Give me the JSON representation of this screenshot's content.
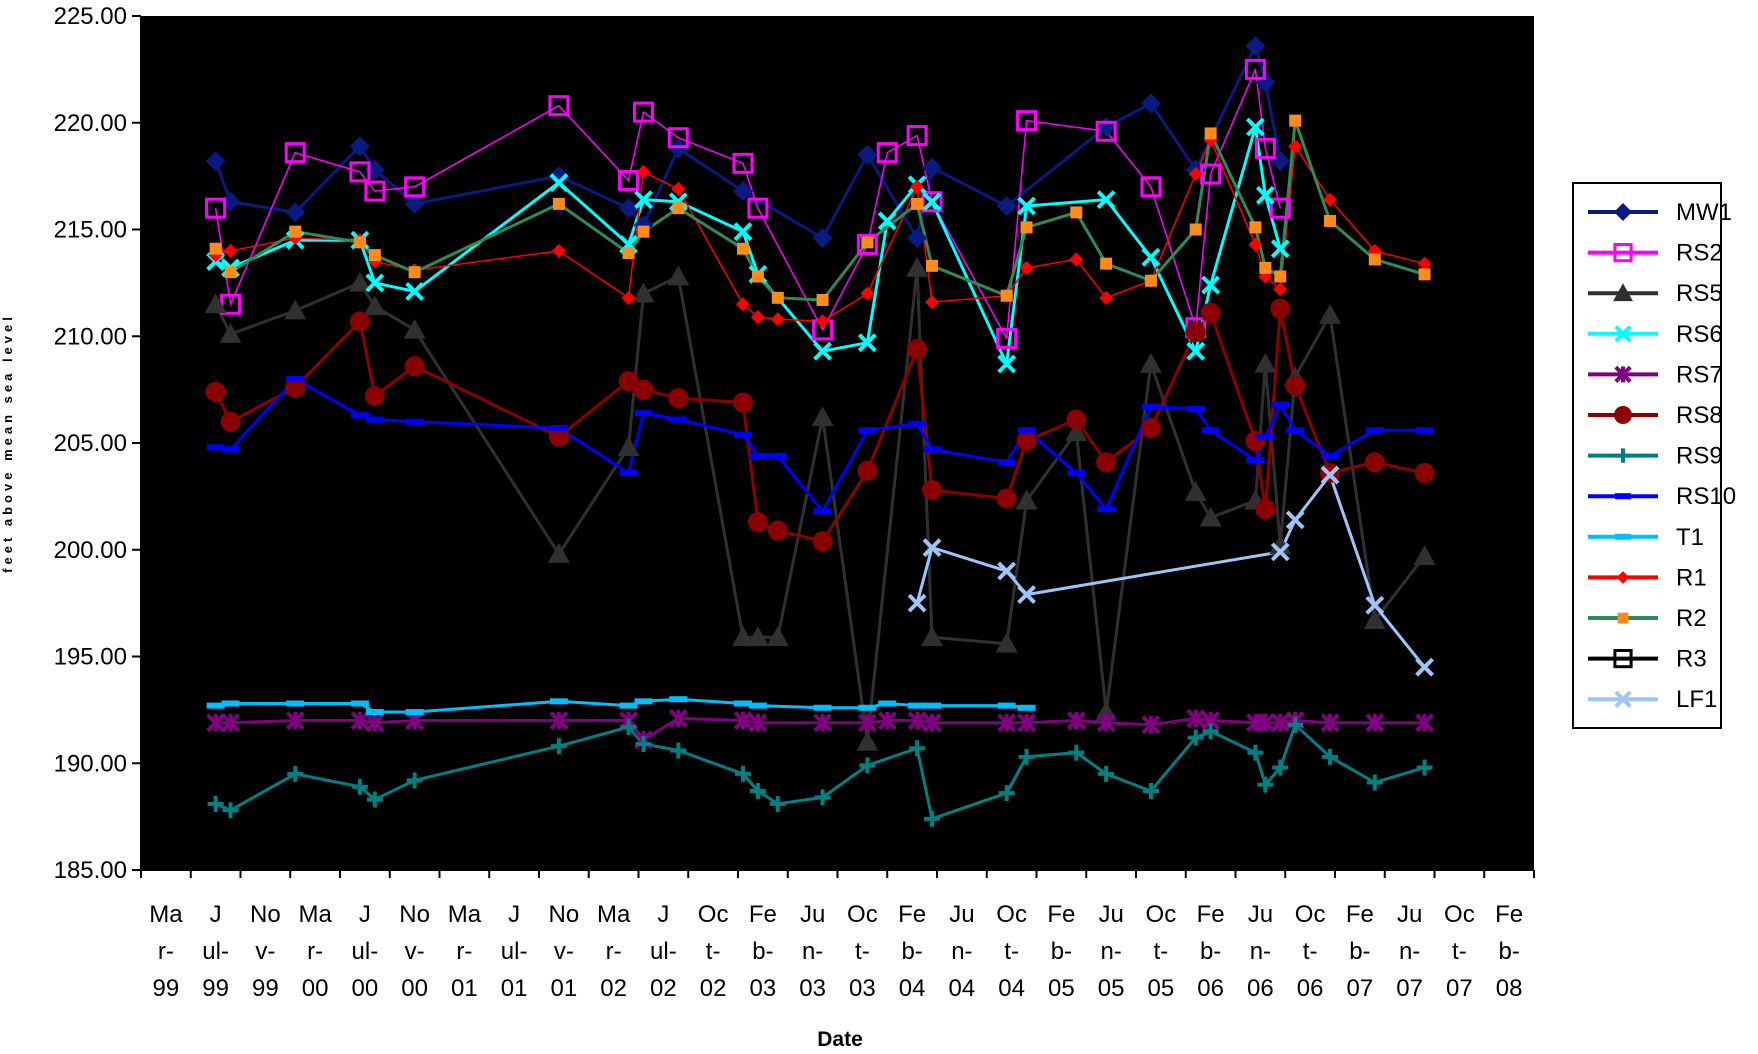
{
  "chart_data": {
    "type": "line",
    "title": "",
    "xlabel": "Date",
    "ylabel": "feet above mean sea level",
    "ylim": [
      185,
      225
    ],
    "yticks": [
      "185.00",
      "190.00",
      "195.00",
      "200.00",
      "205.00",
      "210.00",
      "215.00",
      "220.00",
      "225.00"
    ],
    "xticks": [
      [
        "Ma",
        "r-",
        "99"
      ],
      [
        "J",
        "ul-",
        "99"
      ],
      [
        "No",
        "v-",
        "99"
      ],
      [
        "Ma",
        "r-",
        "00"
      ],
      [
        "J",
        "ul-",
        "00"
      ],
      [
        "No",
        "v-",
        "00"
      ],
      [
        "Ma",
        "r-",
        "01"
      ],
      [
        "J",
        "ul-",
        "01"
      ],
      [
        "No",
        "v-",
        "01"
      ],
      [
        "Ma",
        "r-",
        "02"
      ],
      [
        "J",
        "ul-",
        "02"
      ],
      [
        "Oc",
        "t-",
        "02"
      ],
      [
        "Fe",
        "b-",
        "03"
      ],
      [
        "Ju",
        "n-",
        "03"
      ],
      [
        "Oc",
        "t-",
        "03"
      ],
      [
        "Fe",
        "b-",
        "04"
      ],
      [
        "Ju",
        "n-",
        "04"
      ],
      [
        "Oc",
        "t-",
        "04"
      ],
      [
        "Fe",
        "b-",
        "05"
      ],
      [
        "Ju",
        "n-",
        "05"
      ],
      [
        "Oc",
        "t-",
        "05"
      ],
      [
        "Fe",
        "b-",
        "06"
      ],
      [
        "Ju",
        "n-",
        "06"
      ],
      [
        "Oc",
        "t-",
        "06"
      ],
      [
        "Fe",
        "b-",
        "07"
      ],
      [
        "Ju",
        "n-",
        "07"
      ],
      [
        "Oc",
        "t-",
        "07"
      ],
      [
        "Fe",
        "b-",
        "08"
      ]
    ],
    "background": "#000000",
    "grid": false,
    "legend_position": "right",
    "series": [
      {
        "name": "MW1",
        "color": "#0a1a80",
        "marker": "diamond",
        "lineWidth": 3,
        "x": [
          1.0,
          1.3,
          2.6,
          3.9,
          4.2,
          5.0,
          7.9,
          9.3,
          9.6,
          10.3,
          11.6,
          13.2,
          14.1,
          15.1,
          15.4,
          16.9,
          18.9,
          19.8,
          20.7,
          21.9,
          22.1,
          22.4
        ],
        "y": [
          218.2,
          216.3,
          215.8,
          218.9,
          217.8,
          216.2,
          217.5,
          216.0,
          215.2,
          218.8,
          216.8,
          214.6,
          218.5,
          214.6,
          217.9,
          216.1,
          219.8,
          220.9,
          217.8,
          223.6,
          221.9,
          218.2
        ]
      },
      {
        "name": "RS2",
        "color": "#ff00ff",
        "marker": "square",
        "lineWidth": 1.5,
        "x": [
          1.0,
          1.3,
          2.6,
          3.9,
          4.2,
          5.0,
          7.9,
          9.3,
          9.6,
          10.3,
          11.6,
          11.9,
          13.2,
          14.1,
          14.5,
          15.1,
          15.4,
          16.9,
          17.3,
          18.9,
          19.8,
          20.7,
          21.0,
          21.9,
          22.1,
          22.4
        ],
        "y": [
          216.0,
          211.5,
          218.6,
          217.7,
          216.8,
          217.0,
          220.8,
          217.3,
          220.5,
          219.3,
          218.1,
          216.0,
          210.3,
          214.3,
          218.6,
          219.4,
          216.3,
          209.9,
          220.1,
          219.6,
          217.0,
          210.4,
          217.6,
          222.5,
          218.8,
          216.0
        ]
      },
      {
        "name": "RS5",
        "color": "#303030",
        "marker": "triangle",
        "lineWidth": 3,
        "x": [
          1.0,
          1.3,
          2.6,
          3.9,
          4.2,
          5.0,
          7.9,
          9.3,
          9.6,
          10.3,
          11.6,
          11.9,
          12.3,
          13.2,
          14.1,
          15.1,
          15.4,
          16.9,
          17.3,
          18.3,
          18.9,
          19.8,
          20.7,
          21.0,
          21.9,
          22.1,
          22.4,
          22.7,
          23.4,
          24.3,
          25.3
        ],
        "y": [
          211.5,
          210.1,
          211.2,
          212.5,
          211.4,
          210.3,
          199.8,
          204.8,
          212.0,
          212.8,
          195.9,
          195.9,
          195.9,
          206.2,
          191.0,
          213.2,
          195.9,
          195.6,
          202.3,
          205.5,
          192.4,
          208.7,
          202.7,
          201.5,
          202.3,
          208.7,
          200.2,
          208.1,
          211.0,
          196.7,
          199.7
        ]
      },
      {
        "name": "RS6",
        "color": "#00ffff",
        "marker": "x",
        "lineWidth": 3,
        "x": [
          1.0,
          1.3,
          2.6,
          3.9,
          4.2,
          5.0,
          7.9,
          9.3,
          9.6,
          10.3,
          11.6,
          11.9,
          13.2,
          14.1,
          14.5,
          15.1,
          15.4,
          16.9,
          17.3,
          18.9,
          19.8,
          20.7,
          21.0,
          21.9,
          22.1,
          22.4
        ],
        "y": [
          213.5,
          213.2,
          214.5,
          214.5,
          212.5,
          212.1,
          217.2,
          214.3,
          216.4,
          216.3,
          214.9,
          212.9,
          209.3,
          209.7,
          215.4,
          217.1,
          216.3,
          208.7,
          216.1,
          216.4,
          213.7,
          209.3,
          212.4,
          219.8,
          216.6,
          214.1
        ]
      },
      {
        "name": "RS7",
        "color": "#800080",
        "marker": "star",
        "lineWidth": 3,
        "x": [
          1.0,
          1.3,
          2.6,
          3.9,
          4.2,
          5.0,
          7.9,
          9.3,
          9.6,
          10.3,
          11.6,
          11.9,
          13.2,
          14.1,
          14.5,
          15.1,
          15.4,
          16.9,
          17.3,
          18.3,
          18.9,
          19.8,
          20.7,
          21.0,
          21.9,
          22.1,
          22.4,
          22.7,
          23.4,
          24.3,
          25.3
        ],
        "y": [
          191.9,
          191.9,
          192.0,
          192.0,
          191.9,
          192.0,
          192.0,
          192.0,
          191.1,
          192.1,
          192.0,
          191.9,
          191.9,
          191.9,
          192.0,
          192.0,
          191.9,
          191.9,
          191.9,
          192.0,
          191.9,
          191.8,
          192.1,
          192.0,
          191.9,
          191.9,
          191.9,
          192.0,
          191.9,
          191.9,
          191.9
        ]
      },
      {
        "name": "RS8",
        "color": "#8b0000",
        "marker": "circle",
        "lineWidth": 3,
        "x": [
          1.0,
          1.3,
          2.6,
          3.9,
          4.2,
          5.0,
          7.9,
          9.3,
          9.6,
          10.3,
          11.6,
          11.9,
          12.3,
          13.2,
          14.1,
          15.1,
          15.4,
          16.9,
          17.3,
          18.3,
          18.9,
          19.8,
          20.7,
          21.0,
          21.9,
          22.1,
          22.4,
          22.7,
          23.4,
          24.3,
          25.3
        ],
        "y": [
          207.4,
          206.0,
          207.6,
          210.7,
          207.2,
          208.6,
          205.3,
          207.9,
          207.5,
          207.1,
          206.9,
          201.3,
          200.9,
          200.4,
          203.7,
          209.4,
          202.8,
          202.4,
          205.1,
          206.1,
          204.1,
          205.7,
          210.2,
          211.1,
          205.1,
          201.9,
          211.3,
          207.7,
          203.6,
          204.1,
          203.6
        ]
      },
      {
        "name": "RS9",
        "color": "#008080",
        "marker": "plus",
        "lineWidth": 3,
        "x": [
          1.0,
          1.3,
          2.6,
          3.9,
          4.2,
          5.0,
          7.9,
          9.3,
          9.6,
          10.3,
          11.6,
          11.9,
          12.3,
          13.2,
          14.1,
          15.1,
          15.4,
          16.9,
          17.3,
          18.3,
          18.9,
          19.8,
          20.7,
          21.0,
          21.9,
          22.1,
          22.4,
          22.7,
          23.4,
          24.3,
          25.3
        ],
        "y": [
          188.1,
          187.8,
          189.5,
          188.9,
          188.3,
          189.2,
          190.8,
          191.7,
          190.9,
          190.6,
          189.5,
          188.7,
          188.1,
          188.4,
          189.9,
          190.7,
          187.4,
          188.6,
          190.3,
          190.5,
          189.5,
          188.7,
          191.2,
          191.5,
          190.5,
          189.0,
          189.8,
          191.8,
          190.3,
          189.1,
          189.8
        ]
      },
      {
        "name": "RS10",
        "color": "#0000ff",
        "marker": "dash",
        "lineWidth": 3,
        "x": [
          1.0,
          1.3,
          2.6,
          3.9,
          4.2,
          5.0,
          7.9,
          9.3,
          9.6,
          10.3,
          11.6,
          11.9,
          12.3,
          13.2,
          14.1,
          15.1,
          15.4,
          16.9,
          17.3,
          18.3,
          18.9,
          19.8,
          20.7,
          21.0,
          21.9,
          22.1,
          22.4,
          22.7,
          23.4,
          24.3,
          25.3
        ],
        "y": [
          204.8,
          204.7,
          208.0,
          206.3,
          206.1,
          206.0,
          205.7,
          203.6,
          206.4,
          206.1,
          205.4,
          204.4,
          204.4,
          201.8,
          205.6,
          205.9,
          204.7,
          204.1,
          205.6,
          203.6,
          201.9,
          206.7,
          206.6,
          205.6,
          204.2,
          205.3,
          206.8,
          205.6,
          204.4,
          205.6,
          205.6
        ]
      },
      {
        "name": "T1",
        "color": "#00bfff",
        "marker": "dash",
        "lineWidth": 3,
        "x": [
          1.0,
          1.3,
          2.6,
          3.9,
          4.2,
          5.0,
          7.9,
          9.3,
          9.6,
          10.3,
          11.6,
          11.9,
          13.2,
          14.1,
          14.5,
          15.1,
          15.4,
          16.9,
          17.3
        ],
        "y": [
          192.7,
          192.8,
          192.8,
          192.8,
          192.4,
          192.4,
          192.9,
          192.7,
          192.9,
          193.0,
          192.8,
          192.7,
          192.6,
          192.6,
          192.8,
          192.7,
          192.7,
          192.7,
          192.6
        ]
      },
      {
        "name": "R1",
        "color": "#ff0000",
        "marker": "smalldiamond",
        "lineWidth": 1.5,
        "x": [
          1.0,
          1.3,
          2.6,
          3.9,
          4.2,
          5.0,
          7.9,
          9.3,
          9.6,
          10.3,
          11.6,
          11.9,
          12.3,
          13.2,
          14.1,
          15.1,
          15.4,
          16.9,
          17.3,
          18.3,
          18.9,
          19.8,
          20.7,
          21.0,
          21.9,
          22.1,
          22.4,
          22.7,
          23.4,
          24.3,
          25.3
        ],
        "y": [
          213.8,
          214.0,
          214.6,
          214.5,
          213.5,
          213.1,
          214.0,
          211.8,
          217.7,
          216.9,
          211.5,
          210.9,
          210.8,
          210.7,
          212.0,
          217.0,
          211.6,
          211.9,
          213.2,
          213.6,
          211.8,
          212.6,
          217.6,
          219.2,
          214.3,
          212.8,
          212.2,
          218.9,
          216.4,
          214.0,
          213.4
        ]
      },
      {
        "name": "R2",
        "color": "#2e8b57",
        "marker": "smallsquare",
        "lineWidth": 3,
        "x": [
          1.0,
          1.3,
          2.6,
          3.9,
          4.2,
          5.0,
          7.9,
          9.3,
          9.6,
          10.3,
          11.6,
          11.9,
          12.3,
          13.2,
          14.1,
          15.1,
          15.4,
          16.9,
          17.3,
          18.3,
          18.9,
          19.8,
          20.7,
          21.0,
          21.9,
          22.1,
          22.4,
          22.7,
          23.4,
          24.3,
          25.3
        ],
        "y": [
          214.1,
          213.0,
          214.9,
          214.4,
          213.8,
          213.0,
          216.2,
          213.9,
          214.9,
          216.0,
          214.1,
          212.8,
          211.8,
          211.7,
          214.4,
          216.2,
          213.3,
          211.9,
          215.1,
          215.8,
          213.4,
          212.6,
          215.0,
          219.5,
          215.1,
          213.2,
          212.8,
          220.1,
          215.4,
          213.6,
          212.9
        ]
      },
      {
        "name": "R3",
        "color": "#000000",
        "marker": "square",
        "lineWidth": 3,
        "x": [],
        "y": []
      },
      {
        "name": "LF1",
        "color": "#9fc5f8",
        "marker": "x",
        "lineWidth": 3,
        "x": [
          15.1,
          15.4,
          16.9,
          17.3,
          22.4,
          22.7,
          23.4,
          24.3,
          25.3
        ],
        "y": [
          197.5,
          200.1,
          199.0,
          197.9,
          199.9,
          201.4,
          203.5,
          197.4,
          194.5
        ]
      }
    ]
  }
}
